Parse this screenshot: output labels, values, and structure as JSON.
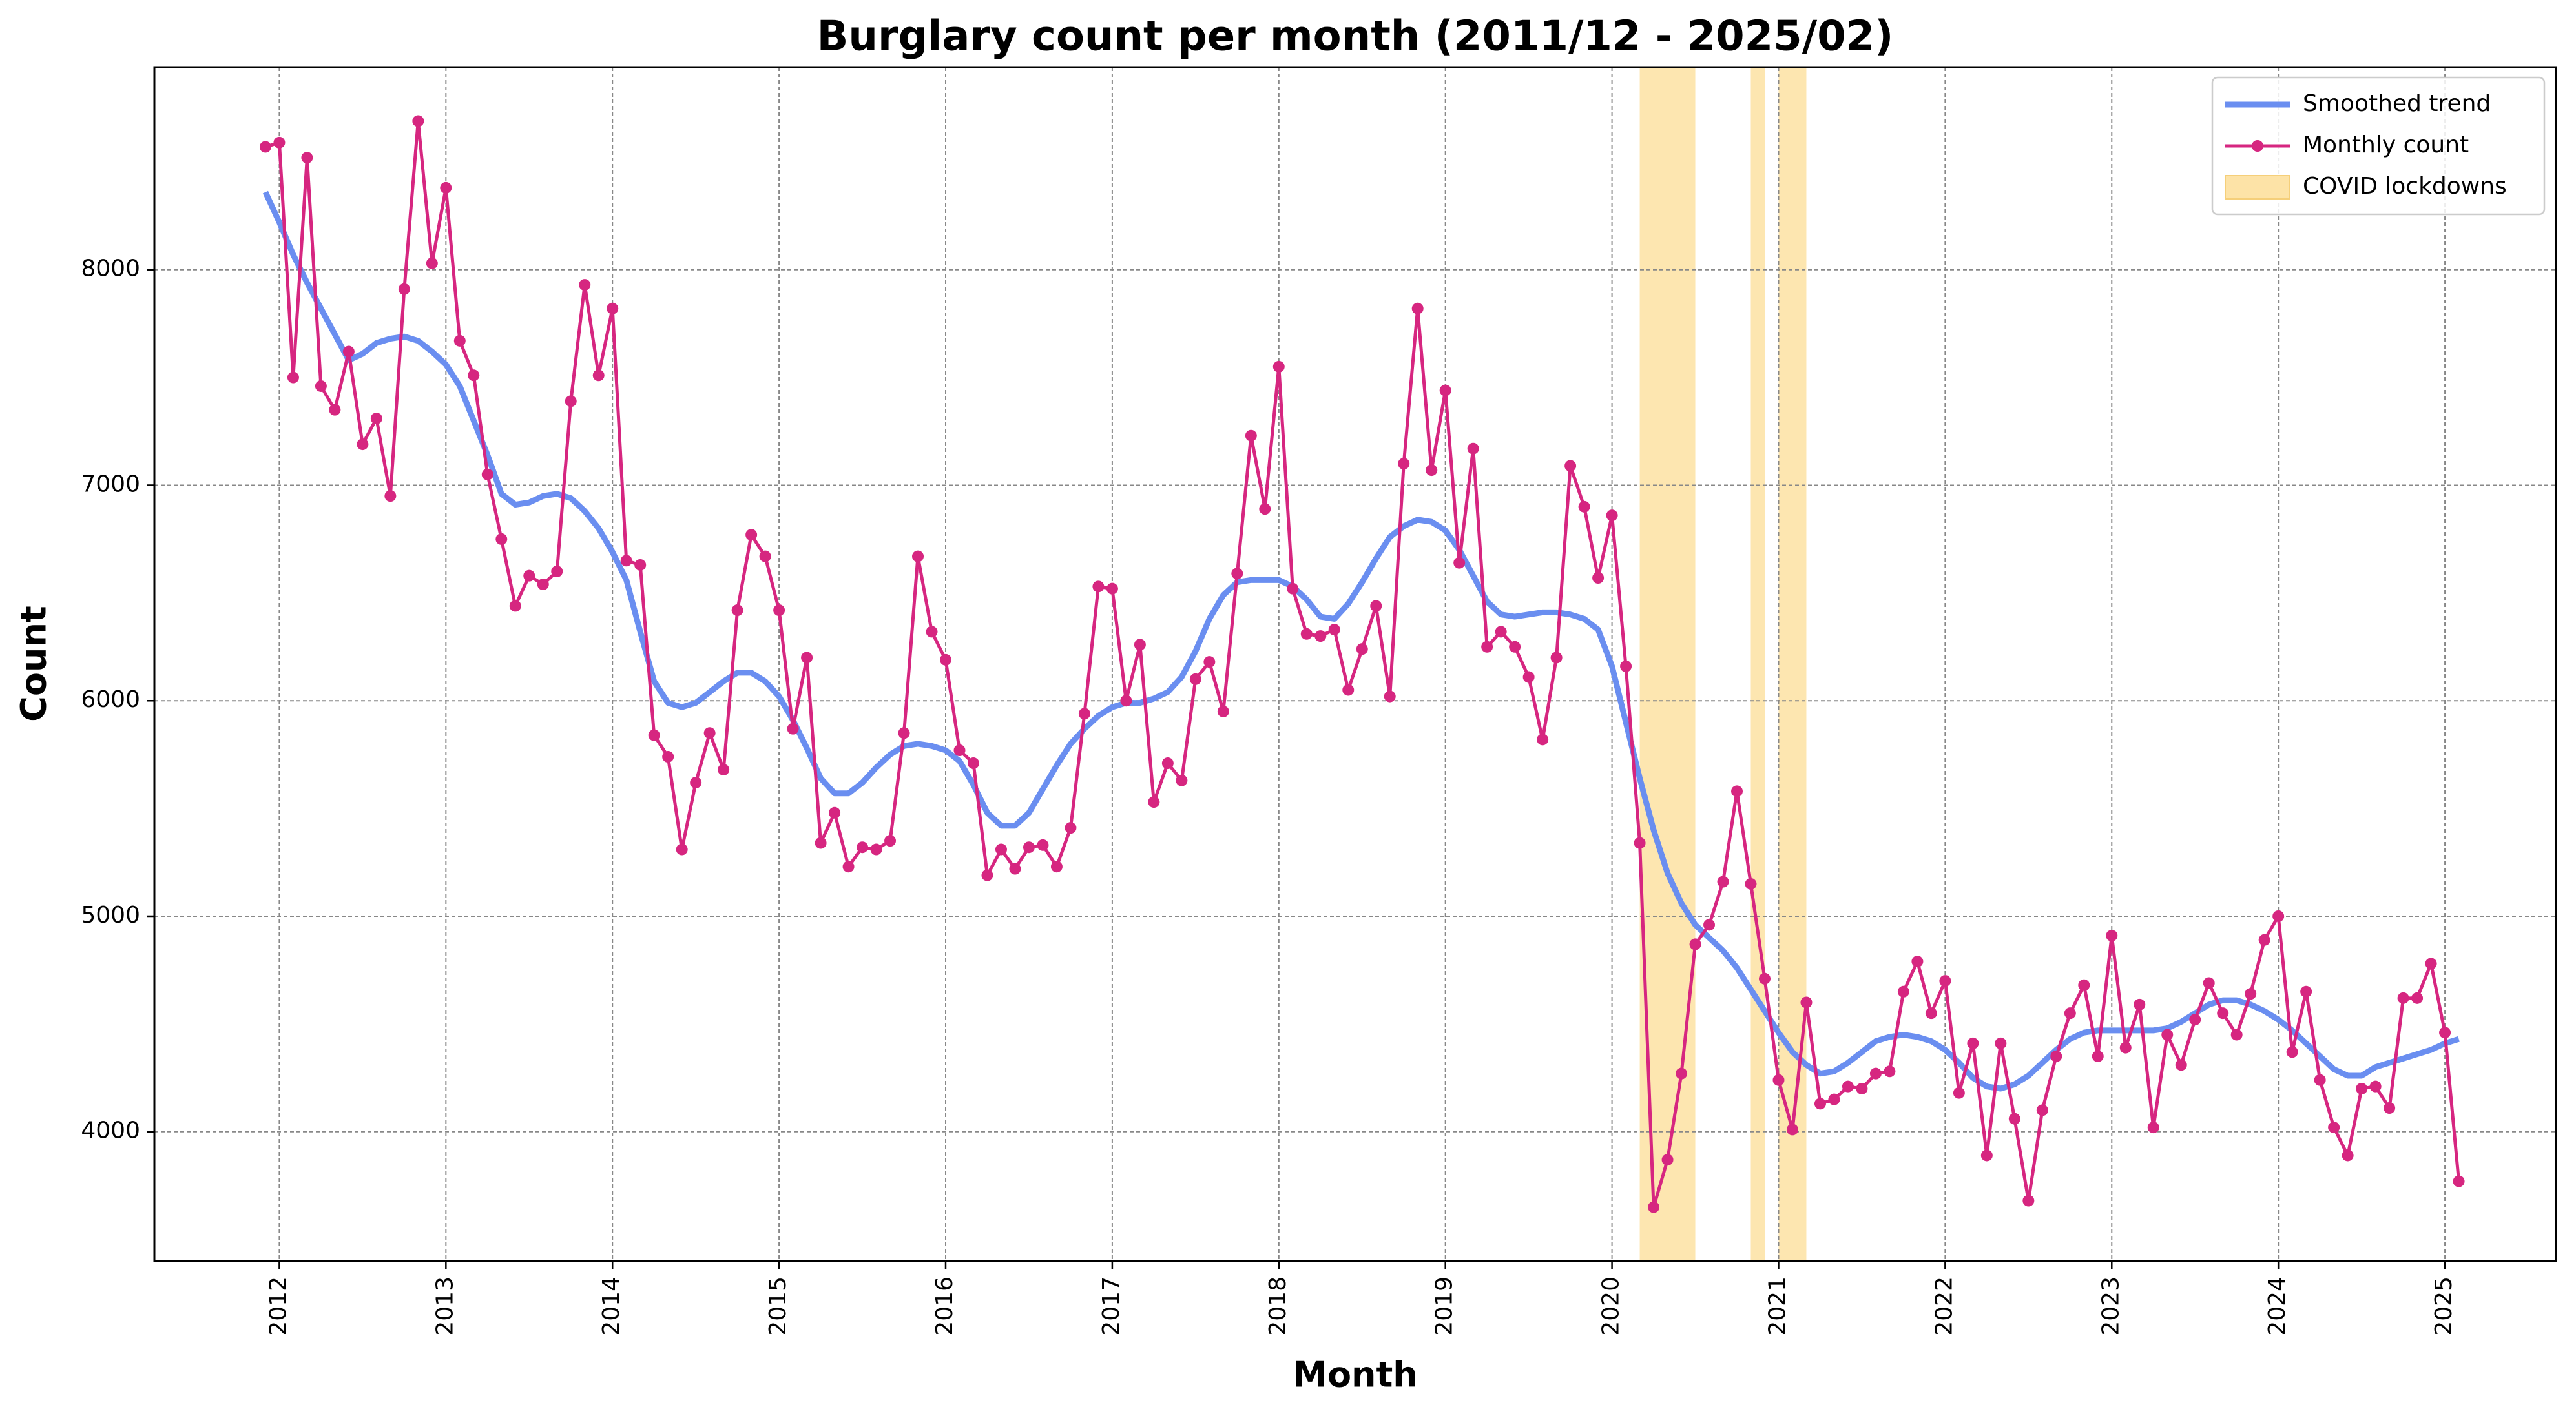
{
  "chart_data": {
    "type": "line",
    "title": "Burglary count per month (2011/12 - 2025/02)",
    "x_label": "Month",
    "y_label": "Count",
    "x": [
      "2011-12",
      "2012-01",
      "2012-02",
      "2012-03",
      "2012-04",
      "2012-05",
      "2012-06",
      "2012-07",
      "2012-08",
      "2012-09",
      "2012-10",
      "2012-11",
      "2012-12",
      "2013-01",
      "2013-02",
      "2013-03",
      "2013-04",
      "2013-05",
      "2013-06",
      "2013-07",
      "2013-08",
      "2013-09",
      "2013-10",
      "2013-11",
      "2013-12",
      "2014-01",
      "2014-02",
      "2014-03",
      "2014-04",
      "2014-05",
      "2014-06",
      "2014-07",
      "2014-08",
      "2014-09",
      "2014-10",
      "2014-11",
      "2014-12",
      "2015-01",
      "2015-02",
      "2015-03",
      "2015-04",
      "2015-05",
      "2015-06",
      "2015-07",
      "2015-08",
      "2015-09",
      "2015-10",
      "2015-11",
      "2015-12",
      "2016-01",
      "2016-02",
      "2016-03",
      "2016-04",
      "2016-05",
      "2016-06",
      "2016-07",
      "2016-08",
      "2016-09",
      "2016-10",
      "2016-11",
      "2016-12",
      "2017-01",
      "2017-02",
      "2017-03",
      "2017-04",
      "2017-05",
      "2017-06",
      "2017-07",
      "2017-08",
      "2017-09",
      "2017-10",
      "2017-11",
      "2017-12",
      "2018-01",
      "2018-02",
      "2018-03",
      "2018-04",
      "2018-05",
      "2018-06",
      "2018-07",
      "2018-08",
      "2018-09",
      "2018-10",
      "2018-11",
      "2018-12",
      "2019-01",
      "2019-02",
      "2019-03",
      "2019-04",
      "2019-05",
      "2019-06",
      "2019-07",
      "2019-08",
      "2019-09",
      "2019-10",
      "2019-11",
      "2019-12",
      "2020-01",
      "2020-02",
      "2020-03",
      "2020-04",
      "2020-05",
      "2020-06",
      "2020-07",
      "2020-08",
      "2020-09",
      "2020-10",
      "2020-11",
      "2020-12",
      "2021-01",
      "2021-02",
      "2021-03",
      "2021-04",
      "2021-05",
      "2021-06",
      "2021-07",
      "2021-08",
      "2021-09",
      "2021-10",
      "2021-11",
      "2021-12",
      "2022-01",
      "2022-02",
      "2022-03",
      "2022-04",
      "2022-05",
      "2022-06",
      "2022-07",
      "2022-08",
      "2022-09",
      "2022-10",
      "2022-11",
      "2022-12",
      "2023-01",
      "2023-02",
      "2023-03",
      "2023-04",
      "2023-05",
      "2023-06",
      "2023-07",
      "2023-08",
      "2023-09",
      "2023-10",
      "2023-11",
      "2023-12",
      "2024-01",
      "2024-02",
      "2024-03",
      "2024-04",
      "2024-05",
      "2024-06",
      "2024-07",
      "2024-08",
      "2024-09",
      "2024-10",
      "2024-11",
      "2024-12",
      "2025-01",
      "2025-02"
    ],
    "series": [
      {
        "name": "Smoothed trend",
        "color": "#6a8ef0",
        "marker": false,
        "values": [
          8360,
          8220,
          8070,
          7940,
          7820,
          7700,
          7580,
          7610,
          7660,
          7680,
          7690,
          7670,
          7620,
          7560,
          7460,
          7300,
          7140,
          6960,
          6910,
          6920,
          6950,
          6960,
          6940,
          6880,
          6800,
          6690,
          6560,
          6320,
          6090,
          5990,
          5970,
          5990,
          6040,
          6090,
          6130,
          6130,
          6090,
          6020,
          5910,
          5780,
          5640,
          5570,
          5570,
          5620,
          5690,
          5750,
          5790,
          5800,
          5790,
          5770,
          5720,
          5610,
          5480,
          5420,
          5420,
          5480,
          5590,
          5700,
          5800,
          5870,
          5930,
          5970,
          5990,
          5990,
          6010,
          6040,
          6110,
          6230,
          6380,
          6490,
          6550,
          6560,
          6560,
          6560,
          6530,
          6470,
          6390,
          6380,
          6450,
          6550,
          6660,
          6760,
          6810,
          6840,
          6830,
          6790,
          6700,
          6580,
          6460,
          6400,
          6390,
          6400,
          6410,
          6410,
          6400,
          6380,
          6330,
          6160,
          5900,
          5640,
          5400,
          5200,
          5060,
          4960,
          4900,
          4840,
          4760,
          4660,
          4560,
          4460,
          4370,
          4310,
          4270,
          4280,
          4320,
          4370,
          4420,
          4440,
          4450,
          4440,
          4420,
          4380,
          4320,
          4250,
          4210,
          4200,
          4220,
          4260,
          4320,
          4380,
          4430,
          4460,
          4470,
          4470,
          4470,
          4470,
          4470,
          4480,
          4510,
          4550,
          4590,
          4610,
          4610,
          4590,
          4560,
          4520,
          4470,
          4410,
          4350,
          4290,
          4260,
          4260,
          4300,
          4320,
          4340,
          4360,
          4380,
          4410,
          4430
        ]
      },
      {
        "name": "Monthly count",
        "color": "#d62680",
        "marker": true,
        "values": [
          8570,
          8590,
          7500,
          8520,
          7460,
          7350,
          7620,
          7190,
          7310,
          6950,
          7910,
          8690,
          8030,
          8380,
          7670,
          7510,
          7050,
          6750,
          6440,
          6580,
          6540,
          6600,
          7390,
          7930,
          7510,
          7820,
          6650,
          6630,
          5840,
          5740,
          5310,
          5620,
          5850,
          5680,
          6420,
          6770,
          6670,
          6420,
          5870,
          6200,
          5340,
          5480,
          5230,
          5320,
          5310,
          5350,
          5850,
          6670,
          6320,
          6190,
          5770,
          5710,
          5190,
          5310,
          5220,
          5320,
          5330,
          5230,
          5410,
          5940,
          6530,
          6520,
          6000,
          6260,
          5530,
          5710,
          5630,
          6100,
          6180,
          5950,
          6590,
          7230,
          6890,
          7550,
          6520,
          6310,
          6300,
          6330,
          6050,
          6240,
          6440,
          6020,
          7100,
          7820,
          7070,
          7440,
          6640,
          7170,
          6250,
          6320,
          6250,
          6110,
          5820,
          6200,
          7090,
          6900,
          6570,
          6860,
          6160,
          5340,
          3650,
          3870,
          4270,
          4870,
          4960,
          5160,
          5580,
          5150,
          4710,
          4240,
          4010,
          4600,
          4130,
          4150,
          4210,
          4200,
          4270,
          4280,
          4650,
          4790,
          4550,
          4700,
          4180,
          4410,
          3890,
          4410,
          4060,
          3680,
          4100,
          4350,
          4550,
          4680,
          4350,
          4910,
          4390,
          4590,
          4020,
          4450,
          4310,
          4520,
          4690,
          4550,
          4450,
          4640,
          4890,
          5000,
          4370,
          4650,
          4240,
          4020,
          3890,
          4200,
          4210,
          4110,
          4620,
          4620,
          4780,
          4460,
          3770
        ]
      }
    ],
    "spans": {
      "name": "COVID lockdowns",
      "color": "#fde3a7",
      "ranges": [
        [
          "2020-03",
          "2020-07"
        ],
        [
          "2020-11",
          "2020-12"
        ],
        [
          "2021-01",
          "2021-03"
        ]
      ]
    },
    "xlim": [
      "2011-04",
      "2025-09"
    ],
    "xticks": [
      {
        "value": "2012-01",
        "label": "2012"
      },
      {
        "value": "2013-01",
        "label": "2013"
      },
      {
        "value": "2014-01",
        "label": "2014"
      },
      {
        "value": "2015-01",
        "label": "2015"
      },
      {
        "value": "2016-01",
        "label": "2016"
      },
      {
        "value": "2017-01",
        "label": "2017"
      },
      {
        "value": "2018-01",
        "label": "2018"
      },
      {
        "value": "2019-01",
        "label": "2019"
      },
      {
        "value": "2020-01",
        "label": "2020"
      },
      {
        "value": "2021-01",
        "label": "2021"
      },
      {
        "value": "2022-01",
        "label": "2022"
      },
      {
        "value": "2023-01",
        "label": "2023"
      },
      {
        "value": "2024-01",
        "label": "2024"
      },
      {
        "value": "2025-01",
        "label": "2025"
      }
    ],
    "ylim": [
      3400,
      8940
    ],
    "yticks": [
      4000,
      5000,
      6000,
      7000,
      8000
    ],
    "grid": true,
    "legend": "upper-right"
  }
}
